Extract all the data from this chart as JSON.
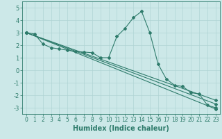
{
  "title": "",
  "xlabel": "Humidex (Indice chaleur)",
  "ylabel": "",
  "bg_color": "#cce8e8",
  "line_color": "#2e7b6b",
  "grid_color": "#b0d4d4",
  "xlim": [
    -0.5,
    23.5
  ],
  "ylim": [
    -3.5,
    5.5
  ],
  "yticks": [
    -3,
    -2,
    -1,
    0,
    1,
    2,
    3,
    4,
    5
  ],
  "xticks": [
    0,
    1,
    2,
    3,
    4,
    5,
    6,
    7,
    8,
    9,
    10,
    11,
    12,
    13,
    14,
    15,
    16,
    17,
    18,
    19,
    20,
    21,
    22,
    23
  ],
  "curve": {
    "x": [
      0,
      1,
      2,
      3,
      4,
      5,
      6,
      7,
      8,
      9,
      10,
      11,
      12,
      13,
      14,
      15,
      16,
      17,
      18,
      19,
      20,
      21,
      22,
      23
    ],
    "y": [
      3.0,
      2.9,
      2.1,
      1.8,
      1.7,
      1.6,
      1.5,
      1.45,
      1.4,
      1.0,
      1.0,
      2.7,
      3.35,
      4.2,
      4.7,
      3.0,
      0.5,
      -0.7,
      -1.2,
      -1.3,
      -1.8,
      -1.9,
      -2.8,
      -3.0
    ]
  },
  "lines": [
    {
      "x": [
        0,
        23
      ],
      "y": [
        3.0,
        -2.4
      ]
    },
    {
      "x": [
        0,
        23
      ],
      "y": [
        3.0,
        -2.7
      ]
    },
    {
      "x": [
        0,
        23
      ],
      "y": [
        3.0,
        -3.1
      ]
    }
  ]
}
